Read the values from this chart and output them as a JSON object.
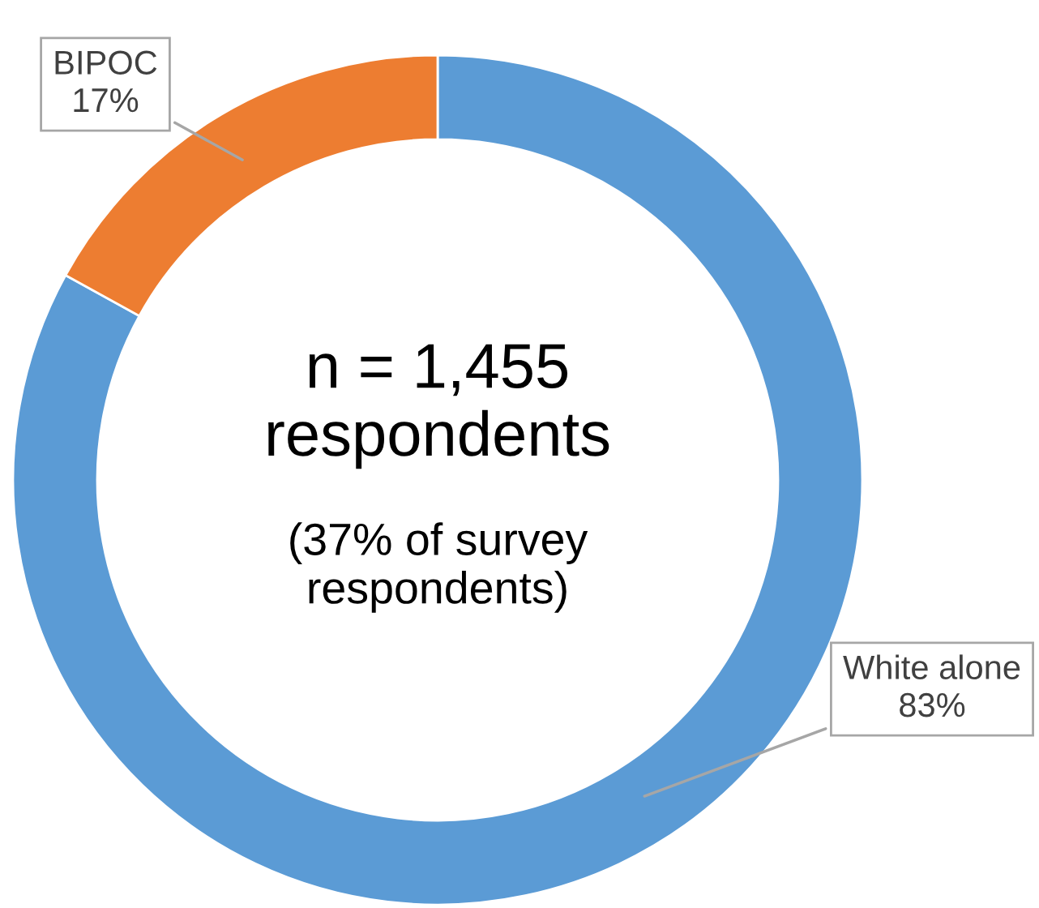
{
  "chart_data": {
    "type": "donut",
    "categories": [
      "White alone",
      "BIPOC"
    ],
    "values": [
      83,
      17
    ],
    "colors": [
      "#5b9bd5",
      "#ed7d31"
    ],
    "value_labels": [
      "83%",
      "17%"
    ],
    "annotations": [
      "n = 1,455\nrespondents",
      "(37% of survey\nrespondents)"
    ]
  }
}
